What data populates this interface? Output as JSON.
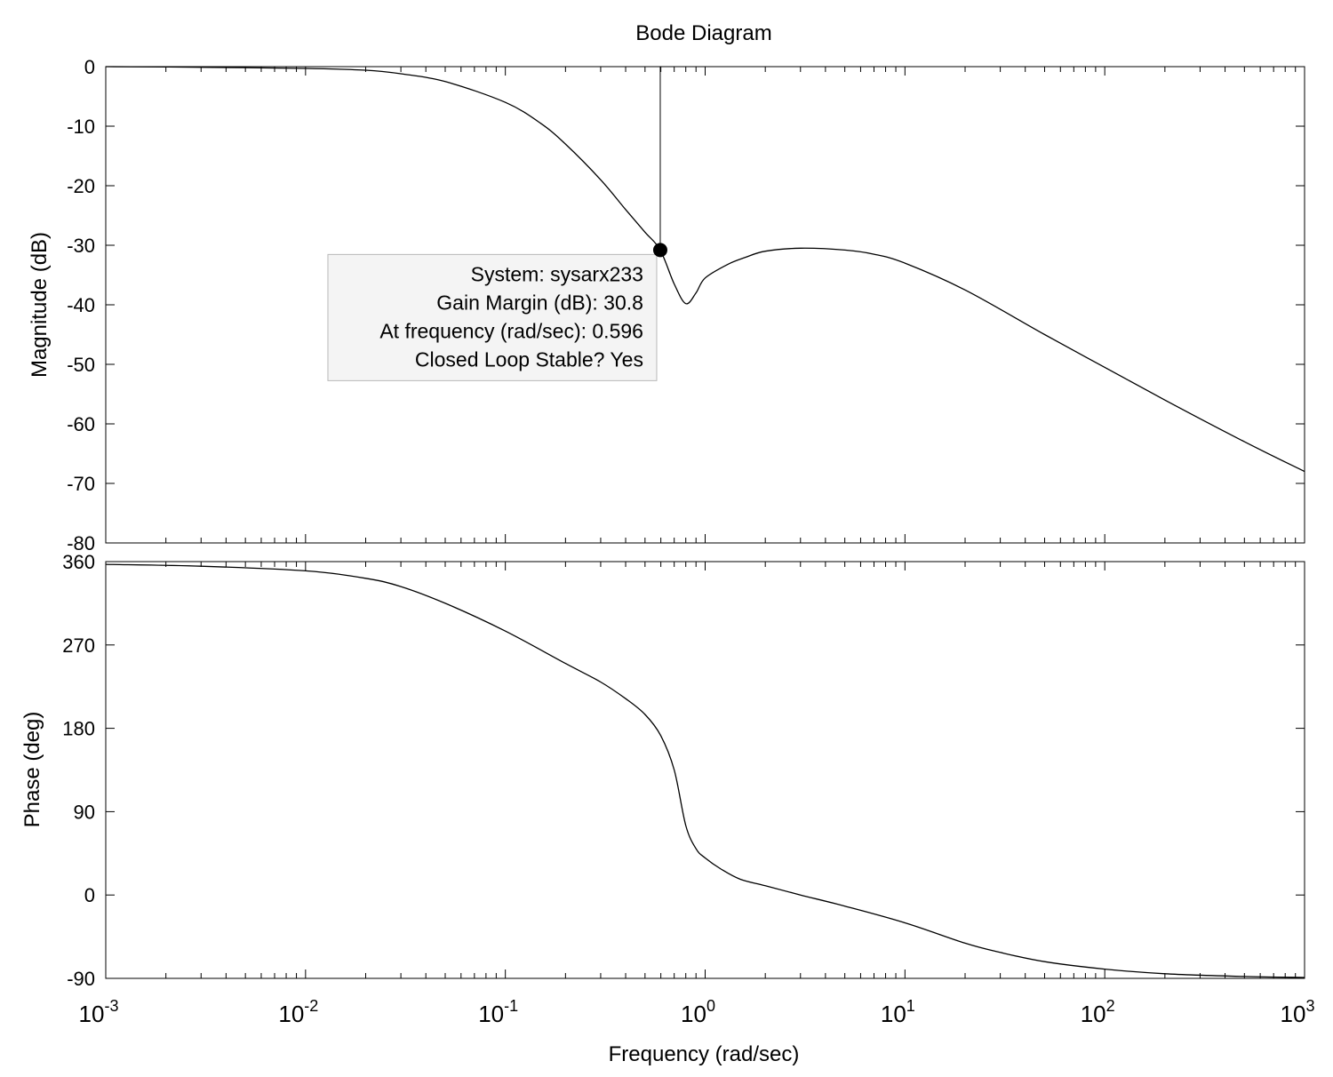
{
  "chart_data": {
    "type": "line",
    "title": "Bode Diagram",
    "xlabel": "Frequency  (rad/sec)",
    "xscale": "log",
    "xlim": [
      0.001,
      1000
    ],
    "x_ticks": [
      {
        "base": "10",
        "exp": "-3"
      },
      {
        "base": "10",
        "exp": "-2"
      },
      {
        "base": "10",
        "exp": "-1"
      },
      {
        "base": "10",
        "exp": "0"
      },
      {
        "base": "10",
        "exp": "1"
      },
      {
        "base": "10",
        "exp": "2"
      },
      {
        "base": "10",
        "exp": "3"
      }
    ],
    "grid": false,
    "panels": [
      {
        "name": "magnitude",
        "ylabel": "Magnitude (dB)",
        "ylim": [
          -80,
          0
        ],
        "y_ticks": [
          "0",
          "-10",
          "-20",
          "-30",
          "-40",
          "-50",
          "-60",
          "-70",
          "-80"
        ],
        "x": [
          0.001,
          0.003,
          0.01,
          0.02,
          0.03,
          0.05,
          0.1,
          0.15,
          0.2,
          0.3,
          0.4,
          0.5,
          0.596,
          0.7,
          0.8,
          0.9,
          1.0,
          1.3,
          1.6,
          2,
          3,
          5,
          7,
          10,
          20,
          50,
          100,
          200,
          500,
          1000
        ],
        "y": [
          0,
          -0.1,
          -0.3,
          -0.6,
          -1.2,
          -2.5,
          -6,
          -9.5,
          -13,
          -19,
          -24,
          -27.8,
          -30.8,
          -36.5,
          -39.8,
          -38,
          -35.5,
          -33.2,
          -32,
          -31,
          -30.5,
          -30.8,
          -31.5,
          -33,
          -37.5,
          -45,
          -50.5,
          -56,
          -63,
          -68
        ]
      },
      {
        "name": "phase",
        "ylabel": "Phase (deg)",
        "ylim": [
          -90,
          360
        ],
        "y_ticks": [
          "360",
          "270",
          "180",
          "90",
          "0",
          "-90"
        ],
        "x": [
          0.001,
          0.003,
          0.01,
          0.02,
          0.03,
          0.05,
          0.1,
          0.2,
          0.3,
          0.4,
          0.5,
          0.6,
          0.7,
          0.8,
          0.9,
          1.0,
          1.2,
          1.5,
          2,
          3,
          5,
          10,
          20,
          30,
          50,
          100,
          200,
          500,
          1000
        ],
        "y": [
          357,
          355,
          350,
          342,
          333,
          315,
          285,
          250,
          230,
          212,
          195,
          172,
          135,
          75,
          50,
          40,
          28,
          17,
          10,
          0,
          -12,
          -30,
          -52,
          -62,
          -72,
          -80,
          -85,
          -88,
          -89
        ]
      }
    ],
    "annotation": {
      "marker_x": 0.596,
      "marker_y": -30.8,
      "lines": [
        "System: sysarx233",
        "Gain Margin (dB): 30.8",
        "At frequency (rad/sec): 0.596",
        "Closed Loop Stable? Yes"
      ]
    }
  }
}
